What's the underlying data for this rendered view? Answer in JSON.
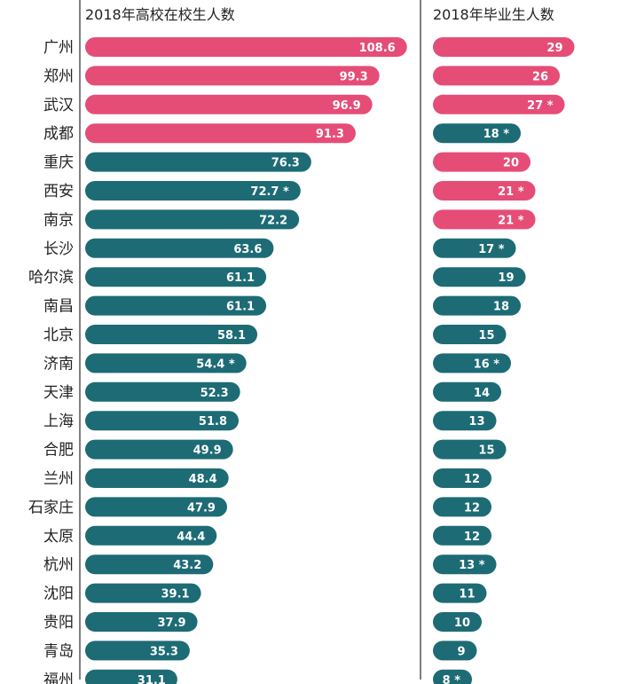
{
  "chart_data": [
    {
      "type": "bar",
      "title": "2018年高校在校生人数",
      "categories": [
        "广州",
        "郑州",
        "武汉",
        "成都",
        "重庆",
        "西安",
        "南京",
        "长沙",
        "哈尔滨",
        "南昌",
        "北京",
        "济南",
        "天津",
        "上海",
        "合肥",
        "兰州",
        "石家庄",
        "太原",
        "杭州",
        "沈阳",
        "贵阳",
        "青岛",
        "福州"
      ],
      "values": [
        108.6,
        99.3,
        96.9,
        91.3,
        76.3,
        72.7,
        72.2,
        63.6,
        61.1,
        61.1,
        58.1,
        54.4,
        52.3,
        51.8,
        49.9,
        48.4,
        47.9,
        44.4,
        43.2,
        39.1,
        37.9,
        35.3,
        31.1
      ],
      "value_labels": [
        "108.6",
        "99.3",
        "96.9",
        "91.3",
        "76.3",
        "72.7 *",
        "72.2",
        "63.6",
        "61.1",
        "61.1",
        "58.1",
        "54.4 *",
        "52.3",
        "51.8",
        "49.9",
        "48.4",
        "47.9",
        "44.4",
        "43.2",
        "39.1",
        "37.9",
        "35.3",
        "31.1"
      ],
      "highlight": [
        true,
        true,
        true,
        true,
        false,
        false,
        false,
        false,
        false,
        false,
        false,
        false,
        false,
        false,
        false,
        false,
        false,
        false,
        false,
        false,
        false,
        false,
        false
      ]
    },
    {
      "type": "bar",
      "title": "2018年毕业生人数",
      "categories": [
        "广州",
        "郑州",
        "武汉",
        "成都",
        "重庆",
        "西安",
        "南京",
        "长沙",
        "哈尔滨",
        "南昌",
        "北京",
        "济南",
        "天津",
        "上海",
        "合肥",
        "兰州",
        "石家庄",
        "太原",
        "杭州",
        "沈阳",
        "贵阳",
        "青岛",
        "福州"
      ],
      "values": [
        29,
        26,
        27,
        18,
        20,
        21,
        21,
        17,
        19,
        18,
        15,
        16,
        14,
        13,
        15,
        12,
        12,
        12,
        13,
        11,
        10,
        9,
        8
      ],
      "value_labels": [
        "29",
        "26",
        "27 *",
        "18 *",
        "20",
        "21 *",
        "21 *",
        "17 *",
        "19",
        "18",
        "15",
        "16 *",
        "14",
        "13",
        "15",
        "12",
        "12",
        "12",
        "13 *",
        "11",
        "10",
        "9",
        "8 *"
      ],
      "highlight": [
        true,
        true,
        true,
        false,
        true,
        true,
        true,
        false,
        false,
        false,
        false,
        false,
        false,
        false,
        false,
        false,
        false,
        false,
        false,
        false,
        false,
        false,
        false
      ]
    }
  ],
  "colors": {
    "highlight": "#e54d77",
    "normal": "#1d6b75",
    "axis": "#555555",
    "label": "#222222",
    "value_text": "#ffffff"
  }
}
